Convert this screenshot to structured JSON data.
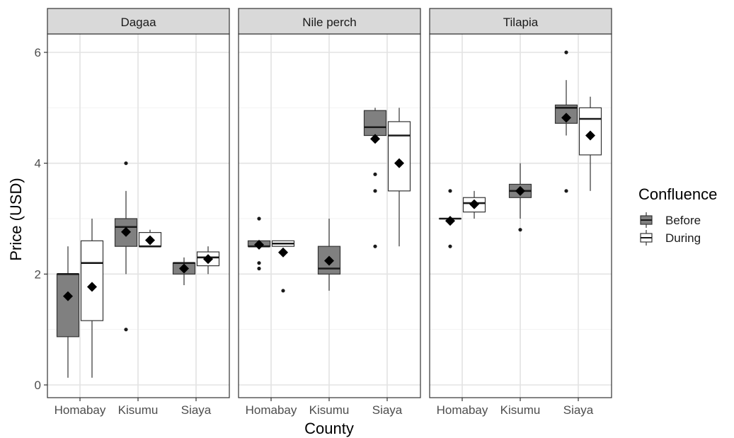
{
  "chart_data": {
    "type": "box",
    "ylabel": "Price (USD)",
    "xlabel": "County",
    "ylim": [
      0,
      6.6
    ],
    "y_ticks": [
      "0",
      "2",
      "4",
      "6"
    ],
    "grid": true,
    "legend": {
      "title": "Confluence",
      "placement": "right",
      "entries": [
        {
          "name": "Before",
          "fill": "#808080"
        },
        {
          "name": "During",
          "fill": "#ffffff"
        }
      ]
    },
    "categories": [
      "Homabay",
      "Kisumu",
      "Siaya"
    ],
    "panels": [
      {
        "title": "Dagaa",
        "boxes": [
          {
            "county": "Homabay",
            "group": "Before",
            "whisker_low": 0.13,
            "q1": 0.87,
            "median": 2.0,
            "q3": 2.0,
            "whisker_high": 2.5,
            "mean": 1.6,
            "outliers": []
          },
          {
            "county": "Homabay",
            "group": "During",
            "whisker_low": 0.13,
            "q1": 1.16,
            "median": 2.2,
            "q3": 2.6,
            "whisker_high": 3.0,
            "mean": 1.77,
            "outliers": []
          },
          {
            "county": "Kisumu",
            "group": "Before",
            "whisker_low": 2.0,
            "q1": 2.5,
            "median": 2.85,
            "q3": 3.0,
            "whisker_high": 3.5,
            "mean": 2.76,
            "outliers": [
              4.0,
              1.0
            ]
          },
          {
            "county": "Kisumu",
            "group": "During",
            "whisker_low": 2.5,
            "q1": 2.5,
            "median": 2.5,
            "q3": 2.75,
            "whisker_high": 2.8,
            "mean": 2.61,
            "outliers": []
          },
          {
            "county": "Siaya",
            "group": "Before",
            "whisker_low": 1.8,
            "q1": 2.0,
            "median": 2.2,
            "q3": 2.2,
            "whisker_high": 2.3,
            "mean": 2.1,
            "outliers": []
          },
          {
            "county": "Siaya",
            "group": "During",
            "whisker_low": 2.0,
            "q1": 2.15,
            "median": 2.3,
            "q3": 2.4,
            "whisker_high": 2.5,
            "mean": 2.27,
            "outliers": []
          }
        ]
      },
      {
        "title": "Nile perch",
        "boxes": [
          {
            "county": "Homabay",
            "group": "Before",
            "whisker_low": 2.5,
            "q1": 2.5,
            "median": 2.5,
            "q3": 2.6,
            "whisker_high": 2.6,
            "mean": 2.53,
            "outliers": [
              3.0,
              2.2,
              2.1
            ]
          },
          {
            "county": "Homabay",
            "group": "During",
            "whisker_low": 2.5,
            "q1": 2.5,
            "median": 2.55,
            "q3": 2.6,
            "whisker_high": 2.6,
            "mean": 2.39,
            "outliers": [
              1.7
            ]
          },
          {
            "county": "Kisumu",
            "group": "Before",
            "whisker_low": 1.7,
            "q1": 2.0,
            "median": 2.1,
            "q3": 2.5,
            "whisker_high": 3.0,
            "mean": 2.24,
            "outliers": []
          },
          {
            "county": "Siaya",
            "group": "Before",
            "whisker_low": 4.5,
            "q1": 4.5,
            "median": 4.65,
            "q3": 4.95,
            "whisker_high": 5.0,
            "mean": 4.44,
            "outliers": [
              3.8,
              3.5,
              2.5
            ]
          },
          {
            "county": "Siaya",
            "group": "During",
            "whisker_low": 2.5,
            "q1": 3.5,
            "median": 4.5,
            "q3": 4.75,
            "whisker_high": 5.0,
            "mean": 4.0,
            "outliers": []
          }
        ]
      },
      {
        "title": "Tilapia",
        "boxes": [
          {
            "county": "Homabay",
            "group": "Before",
            "whisker_low": 3.0,
            "q1": 3.0,
            "median": 3.0,
            "q3": 3.0,
            "whisker_high": 3.0,
            "mean": 2.96,
            "outliers": [
              3.5,
              2.5
            ]
          },
          {
            "county": "Homabay",
            "group": "During",
            "whisker_low": 3.0,
            "q1": 3.12,
            "median": 3.28,
            "q3": 3.38,
            "whisker_high": 3.5,
            "mean": 3.26,
            "outliers": []
          },
          {
            "county": "Kisumu",
            "group": "Before",
            "whisker_low": 3.0,
            "q1": 3.38,
            "median": 3.5,
            "q3": 3.62,
            "whisker_high": 4.0,
            "mean": 3.5,
            "outliers": [
              2.8
            ]
          },
          {
            "county": "Siaya",
            "group": "Before",
            "whisker_low": 4.5,
            "q1": 4.72,
            "median": 5.0,
            "q3": 5.05,
            "whisker_high": 5.5,
            "mean": 4.82,
            "outliers": [
              6.0,
              3.5
            ]
          },
          {
            "county": "Siaya",
            "group": "During",
            "whisker_low": 3.5,
            "q1": 4.15,
            "median": 4.8,
            "q3": 5.0,
            "whisker_high": 5.2,
            "mean": 4.5,
            "outliers": []
          }
        ]
      }
    ]
  }
}
